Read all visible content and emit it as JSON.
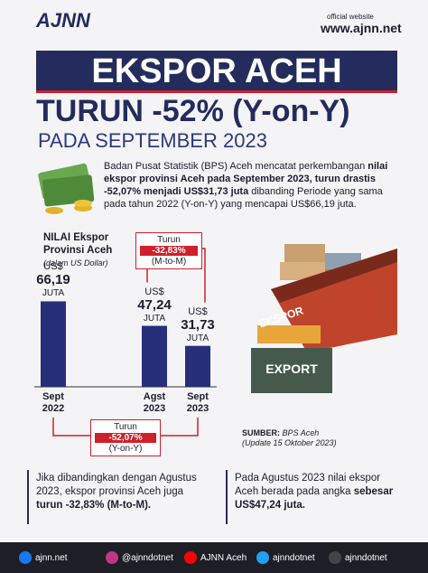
{
  "header": {
    "logo": "AJNN",
    "site_label": "official website",
    "site": "www.ajnn.net",
    "title": "EKSPOR ACEH",
    "headline": "TURUN -52% (Y-on-Y)",
    "subtitle": "PADA SEPTEMBER 2023"
  },
  "intro": {
    "parts": [
      "Badan Pusat Statistik (BPS) Aceh mencatat perkembangan ",
      "nilai ekspor provinsi Aceh pada September 2023, turun drastis -52,07% menjadi US$31,73 juta",
      " dibanding Periode yang sama pada tahun 2022 (Y-on-Y) yang mencapai US$66,19 juta."
    ]
  },
  "chart_data": {
    "type": "bar",
    "title": "NILAI Ekspor Provinsi Aceh",
    "subtitle": "(dalam US Dollar)",
    "categories": [
      "Sept 2022",
      "Agst 2023",
      "Sept 2023"
    ],
    "values": [
      66.19,
      47.24,
      31.73
    ],
    "value_labels": [
      "66,19",
      "47,24",
      "31,73"
    ],
    "currency": "US$",
    "unit": "JUTA",
    "color": "#272f7a",
    "ylim": [
      0,
      70
    ],
    "annotations": [
      {
        "label": "Turun",
        "change": "-32,83%",
        "basis": "(M-to-M)"
      },
      {
        "label": "Turun",
        "change": "-52,07%",
        "basis": "(Y-on-Y)"
      }
    ]
  },
  "illustration": {
    "ship_label": "EKSPOR",
    "crate_label": "EXPORT"
  },
  "source": {
    "label": "SUMBER:",
    "text": "BPS Aceh",
    "update": "(Update 15 Oktober 2023)"
  },
  "notes": [
    {
      "parts": [
        "Jika dibandingkan dengan Agustus 2023, ekspor provinsi Aceh juga ",
        "turun -32,83% (M-to-M)."
      ]
    },
    {
      "parts": [
        "Pada Agustus 2023 nilai ekspor Aceh berada pada angka ",
        "sebesar US$47,24 juta."
      ]
    }
  ],
  "footer": {
    "links": [
      "ajnn.net",
      "@ajnndotnet",
      "AJNN Aceh",
      "ajnndotnet",
      "ajnndotnet"
    ]
  }
}
